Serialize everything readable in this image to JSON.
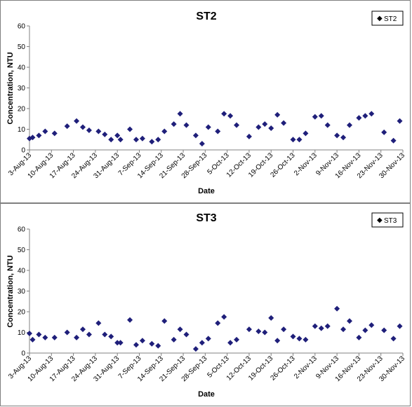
{
  "colors": {
    "marker": "#1f1f7a",
    "axis": "#808080",
    "panel_border": "#7f7f7f"
  },
  "chart_data": [
    {
      "type": "scatter",
      "title": "ST2",
      "xlabel": "Date",
      "ylabel": "Concentration, NTU",
      "ylim": [
        0,
        60
      ],
      "yticks": [
        0,
        10,
        20,
        30,
        40,
        50,
        60
      ],
      "xlim": [
        "2013-08-03",
        "2013-11-30"
      ],
      "xticks": [
        "3-Aug-13",
        "10-Aug-13",
        "17-Aug-13",
        "24-Aug-13",
        "31-Aug-13",
        "7-Sep-13",
        "14-Sep-13",
        "21-Sep-13",
        "28-Sep-13",
        "5-Oct-13",
        "12-Oct-13",
        "19-Oct-13",
        "26-Oct-13",
        "2-Nov-13",
        "9-Nov-13",
        "16-Nov-13",
        "23-Nov-13",
        "30-Nov-13"
      ],
      "grid": false,
      "legend_position": "top-right",
      "series": [
        {
          "name": "ST2",
          "points": [
            [
              "2013-08-03",
              5.5
            ],
            [
              "2013-08-04",
              6
            ],
            [
              "2013-08-06",
              7
            ],
            [
              "2013-08-08",
              9
            ],
            [
              "2013-08-11",
              8
            ],
            [
              "2013-08-15",
              11.5
            ],
            [
              "2013-08-18",
              14
            ],
            [
              "2013-08-20",
              11
            ],
            [
              "2013-08-22",
              9.5
            ],
            [
              "2013-08-25",
              9
            ],
            [
              "2013-08-27",
              7.5
            ],
            [
              "2013-08-29",
              5
            ],
            [
              "2013-08-31",
              7
            ],
            [
              "2013-09-01",
              5
            ],
            [
              "2013-09-04",
              10
            ],
            [
              "2013-09-06",
              5
            ],
            [
              "2013-09-08",
              5.5
            ],
            [
              "2013-09-11",
              4
            ],
            [
              "2013-09-13",
              5
            ],
            [
              "2013-09-15",
              9
            ],
            [
              "2013-09-18",
              12.5
            ],
            [
              "2013-09-20",
              17.5
            ],
            [
              "2013-09-22",
              12
            ],
            [
              "2013-09-25",
              7
            ],
            [
              "2013-09-27",
              3
            ],
            [
              "2013-09-29",
              11
            ],
            [
              "2013-10-02",
              9
            ],
            [
              "2013-10-04",
              17.5
            ],
            [
              "2013-10-06",
              16.5
            ],
            [
              "2013-10-08",
              12
            ],
            [
              "2013-10-12",
              6.5
            ],
            [
              "2013-10-15",
              11
            ],
            [
              "2013-10-17",
              12.5
            ],
            [
              "2013-10-19",
              10.5
            ],
            [
              "2013-10-21",
              17
            ],
            [
              "2013-10-23",
              13
            ],
            [
              "2013-10-26",
              5
            ],
            [
              "2013-10-28",
              5
            ],
            [
              "2013-10-30",
              8
            ],
            [
              "2013-11-02",
              16
            ],
            [
              "2013-11-04",
              16.5
            ],
            [
              "2013-11-06",
              12
            ],
            [
              "2013-11-09",
              7
            ],
            [
              "2013-11-11",
              6
            ],
            [
              "2013-11-13",
              12
            ],
            [
              "2013-11-16",
              15.5
            ],
            [
              "2013-11-18",
              16.5
            ],
            [
              "2013-11-20",
              17.5
            ],
            [
              "2013-11-24",
              8.5
            ],
            [
              "2013-11-27",
              4.5
            ],
            [
              "2013-11-29",
              14
            ]
          ]
        }
      ]
    },
    {
      "type": "scatter",
      "title": "ST3",
      "xlabel": "Date",
      "ylabel": "Concentration, NTU",
      "ylim": [
        0,
        60
      ],
      "yticks": [
        0,
        10,
        20,
        30,
        40,
        50,
        60
      ],
      "xlim": [
        "2013-08-03",
        "2013-11-30"
      ],
      "xticks": [
        "3-Aug-13",
        "10-Aug-13",
        "17-Aug-13",
        "24-Aug-13",
        "31-Aug-13",
        "7-Sep-13",
        "14-Sep-13",
        "21-Sep-13",
        "28-Sep-13",
        "5-Oct-13",
        "12-Oct-13",
        "19-Oct-13",
        "26-Oct-13",
        "2-Nov-13",
        "9-Nov-13",
        "16-Nov-13",
        "23-Nov-13",
        "30-Nov-13"
      ],
      "grid": false,
      "legend_position": "top-right",
      "series": [
        {
          "name": "ST3",
          "points": [
            [
              "2013-08-03",
              9.5
            ],
            [
              "2013-08-04",
              6.5
            ],
            [
              "2013-08-06",
              9
            ],
            [
              "2013-08-08",
              7.5
            ],
            [
              "2013-08-11",
              7.5
            ],
            [
              "2013-08-15",
              10
            ],
            [
              "2013-08-18",
              7.5
            ],
            [
              "2013-08-20",
              11.5
            ],
            [
              "2013-08-22",
              9
            ],
            [
              "2013-08-25",
              14.5
            ],
            [
              "2013-08-27",
              9
            ],
            [
              "2013-08-29",
              8
            ],
            [
              "2013-08-31",
              5
            ],
            [
              "2013-09-01",
              5
            ],
            [
              "2013-09-04",
              16
            ],
            [
              "2013-09-06",
              4
            ],
            [
              "2013-09-08",
              6
            ],
            [
              "2013-09-11",
              4.5
            ],
            [
              "2013-09-13",
              3.5
            ],
            [
              "2013-09-15",
              15.5
            ],
            [
              "2013-09-18",
              6.5
            ],
            [
              "2013-09-20",
              11.5
            ],
            [
              "2013-09-22",
              9
            ],
            [
              "2013-09-25",
              2
            ],
            [
              "2013-09-27",
              5
            ],
            [
              "2013-09-29",
              7
            ],
            [
              "2013-10-02",
              14.5
            ],
            [
              "2013-10-04",
              17.5
            ],
            [
              "2013-10-06",
              5
            ],
            [
              "2013-10-08",
              6.5
            ],
            [
              "2013-10-12",
              11.5
            ],
            [
              "2013-10-15",
              10.5
            ],
            [
              "2013-10-17",
              10
            ],
            [
              "2013-10-19",
              17
            ],
            [
              "2013-10-21",
              6
            ],
            [
              "2013-10-23",
              11.5
            ],
            [
              "2013-10-26",
              8
            ],
            [
              "2013-10-28",
              7
            ],
            [
              "2013-10-30",
              6.5
            ],
            [
              "2013-11-02",
              13
            ],
            [
              "2013-11-04",
              12
            ],
            [
              "2013-11-06",
              13
            ],
            [
              "2013-11-09",
              21.5
            ],
            [
              "2013-11-11",
              11.5
            ],
            [
              "2013-11-13",
              15.5
            ],
            [
              "2013-11-16",
              7.5
            ],
            [
              "2013-11-18",
              11
            ],
            [
              "2013-11-20",
              13.5
            ],
            [
              "2013-11-24",
              11
            ],
            [
              "2013-11-27",
              7
            ],
            [
              "2013-11-29",
              13
            ]
          ]
        }
      ]
    }
  ]
}
